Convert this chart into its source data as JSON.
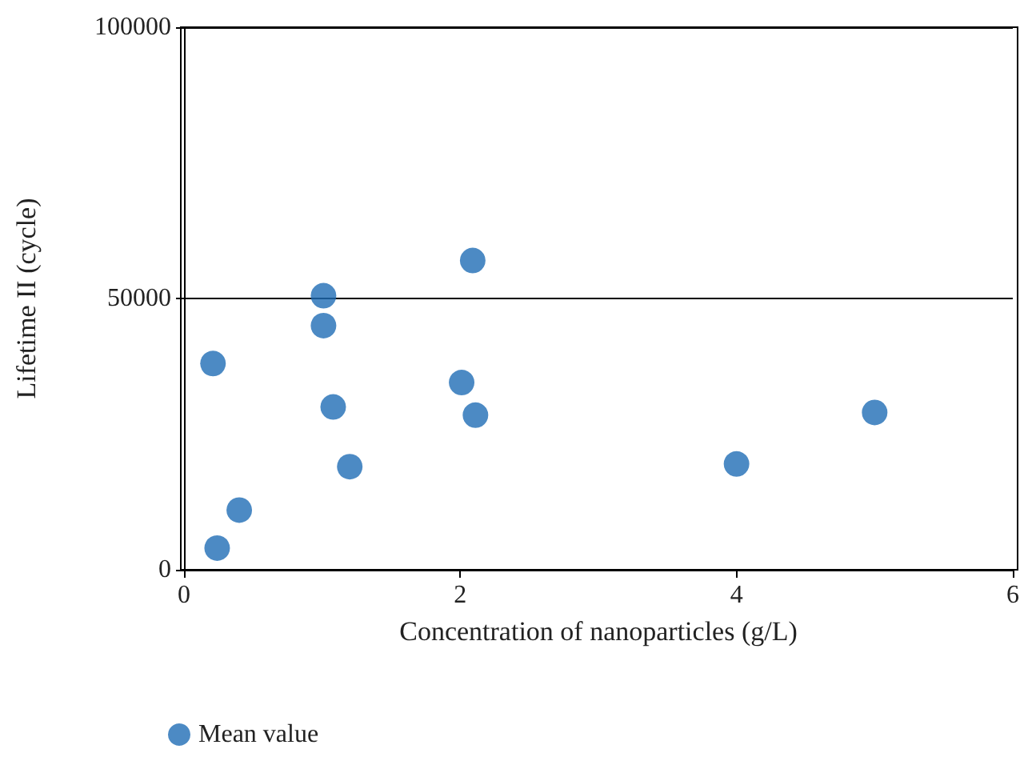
{
  "chart_data": {
    "type": "scatter",
    "xlabel": "Concentration of nanoparticles (g/L)",
    "ylabel": "Lifetime II (cycle)",
    "xlim": [
      0,
      6
    ],
    "xticks": [
      0,
      2,
      4,
      6
    ],
    "ylim": [
      0,
      100000
    ],
    "yticks": [
      0,
      50000,
      100000
    ],
    "grid": "y",
    "legend": "bottom left",
    "marker": "circle",
    "series": [
      {
        "name": "Mean value",
        "color": "#1f6db5",
        "x": [
          0.21,
          0.24,
          0.4,
          1.01,
          1.01,
          1.08,
          1.2,
          2.01,
          2.09,
          2.11,
          4.0,
          5.0
        ],
        "values": [
          38000,
          4000,
          11000,
          50500,
          45000,
          30000,
          19000,
          34500,
          57000,
          28500,
          19500,
          29000
        ]
      }
    ]
  }
}
